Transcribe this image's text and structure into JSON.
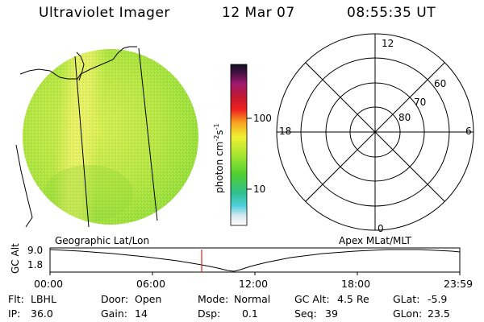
{
  "header": {
    "instrument": "Ultraviolet Imager",
    "date": "12 Mar 07",
    "time": "08:55:35 UT"
  },
  "colorbar": {
    "unit_label": "photon cm",
    "exp1": "-2",
    "mid": "s",
    "exp2": "-1",
    "ticks": [
      "100",
      "10"
    ]
  },
  "polar": {
    "mlt_labels": {
      "top": "12",
      "left": "18",
      "right": "6",
      "bottom": "0"
    },
    "lat_labels": [
      "60",
      "70",
      "80"
    ]
  },
  "timeline": {
    "left_title": "Geographic Lat/Lon",
    "right_title": "Apex MLat/MLT",
    "axis_label": "GC Alt",
    "y_max": "9.0",
    "y_min": "1.8",
    "time_ticks": [
      "00:00",
      "06:00",
      "12:00",
      "18:00",
      "23:59"
    ]
  },
  "info_rows": [
    [
      {
        "label": "Flt:",
        "value": "LBHL"
      },
      {
        "label": "Door:",
        "value": "Open"
      },
      {
        "label": "Mode:",
        "value": "Normal"
      },
      {
        "label": "GC Alt:",
        "value": "4.5 Re"
      },
      {
        "label": "GLat:",
        "value": "-5.9"
      }
    ],
    [
      {
        "label": "IP:",
        "value": "36.0"
      },
      {
        "label": "Gain:",
        "value": "14"
      },
      {
        "label": "Dsp:",
        "value": "0.1"
      },
      {
        "label": "Seq:",
        "value": "39"
      },
      {
        "label": "GLon:",
        "value": "23.5"
      }
    ]
  ],
  "colors": {
    "image_base": "#a8e83a",
    "image_bright": "#f0f060",
    "marker": "#e02020"
  }
}
